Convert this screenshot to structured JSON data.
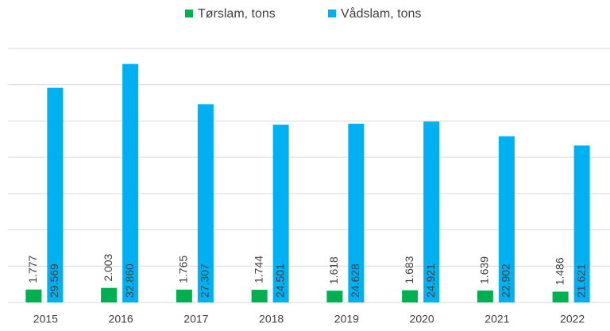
{
  "chart_data": {
    "type": "bar",
    "categories": [
      "2015",
      "2016",
      "2017",
      "2018",
      "2019",
      "2020",
      "2021",
      "2022"
    ],
    "series": [
      {
        "name": "Tørslam, tons",
        "color": "#00b050",
        "values": [
          1777,
          2003,
          1765,
          1744,
          1618,
          1683,
          1639,
          1486
        ],
        "value_labels": [
          "1.777",
          "2.003",
          "1.765",
          "1.744",
          "1.618",
          "1.683",
          "1.639",
          "1.486"
        ]
      },
      {
        "name": "Vådslam, tons",
        "color": "#00b0f0",
        "values": [
          29569,
          32860,
          27307,
          24501,
          24628,
          24921,
          22902,
          21621
        ],
        "value_labels": [
          "29.569",
          "32.860",
          "27.307",
          "24.501",
          "24.628",
          "24.921",
          "22.902",
          "21.621"
        ]
      }
    ],
    "ylim": [
      0,
      35000
    ],
    "yticks": [
      0,
      5000,
      10000,
      15000,
      20000,
      25000,
      30000,
      35000
    ],
    "grid": true,
    "legend": "top"
  }
}
